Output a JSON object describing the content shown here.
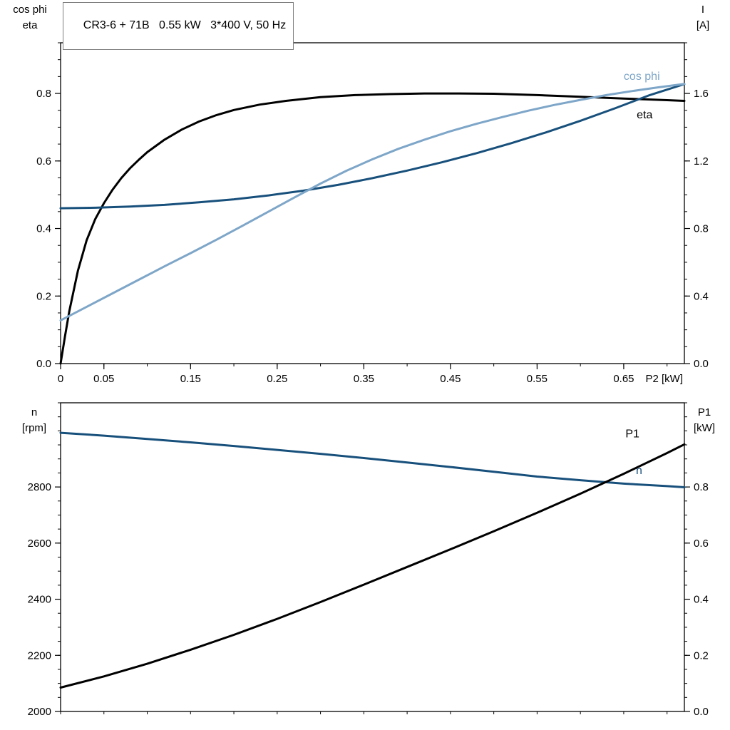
{
  "page": {
    "background": "#ffffff",
    "frame_color": "#000000"
  },
  "chart_data": [
    {
      "type": "line",
      "title": "CR3-6 + 71B   0.55 kW   3*400 V, 50 Hz",
      "x_axis": {
        "label": "P2 [kW]",
        "range": [
          0,
          0.72
        ],
        "tick_step": 0.05,
        "labeled_ticks": [
          {
            "v": 0,
            "t": "0"
          },
          {
            "v": 0.05,
            "t": "0.05"
          },
          {
            "v": 0.15,
            "t": "0.15"
          },
          {
            "v": 0.25,
            "t": "0.25"
          },
          {
            "v": 0.35,
            "t": "0.35"
          },
          {
            "v": 0.45,
            "t": "0.45"
          },
          {
            "v": 0.55,
            "t": "0.55"
          },
          {
            "v": 0.65,
            "t": "0.65"
          }
        ]
      },
      "y_left": {
        "header": [
          "cos phi",
          "eta"
        ],
        "range": [
          0,
          0.95
        ],
        "tick_step": 0.05,
        "labeled_ticks": [
          {
            "v": 0,
            "t": "0.0"
          },
          {
            "v": 0.2,
            "t": "0.2"
          },
          {
            "v": 0.4,
            "t": "0.4"
          },
          {
            "v": 0.6,
            "t": "0.6"
          },
          {
            "v": 0.8,
            "t": "0.8"
          }
        ]
      },
      "y_right": {
        "header": [
          "I",
          "[A]"
        ],
        "range": [
          0,
          1.9
        ],
        "tick_step": 0.1,
        "labeled_ticks": [
          {
            "v": 0,
            "t": "0.0"
          },
          {
            "v": 0.4,
            "t": "0.4"
          },
          {
            "v": 0.8,
            "t": "0.8"
          },
          {
            "v": 1.2,
            "t": "1.2"
          },
          {
            "v": 1.6,
            "t": "1.6"
          }
        ]
      },
      "series": [
        {
          "name": "eta",
          "axis": "left",
          "color": "#000000",
          "label": "eta",
          "label_at": [
            0.665,
            0.737
          ],
          "points": [
            [
              0,
              0
            ],
            [
              0.005,
              0.08
            ],
            [
              0.01,
              0.155
            ],
            [
              0.02,
              0.275
            ],
            [
              0.03,
              0.365
            ],
            [
              0.04,
              0.428
            ],
            [
              0.05,
              0.475
            ],
            [
              0.06,
              0.515
            ],
            [
              0.07,
              0.549
            ],
            [
              0.08,
              0.578
            ],
            [
              0.09,
              0.603
            ],
            [
              0.1,
              0.626
            ],
            [
              0.12,
              0.663
            ],
            [
              0.14,
              0.693
            ],
            [
              0.16,
              0.717
            ],
            [
              0.18,
              0.736
            ],
            [
              0.2,
              0.751
            ],
            [
              0.23,
              0.767
            ],
            [
              0.26,
              0.778
            ],
            [
              0.3,
              0.789
            ],
            [
              0.34,
              0.795
            ],
            [
              0.38,
              0.798
            ],
            [
              0.42,
              0.8
            ],
            [
              0.46,
              0.8
            ],
            [
              0.5,
              0.799
            ],
            [
              0.55,
              0.795
            ],
            [
              0.6,
              0.79
            ],
            [
              0.65,
              0.785
            ],
            [
              0.7,
              0.78
            ],
            [
              0.72,
              0.778
            ]
          ]
        },
        {
          "name": "I",
          "axis": "right",
          "color": "#18507c",
          "label": "",
          "points": [
            [
              0,
              0.92
            ],
            [
              0.04,
              0.923
            ],
            [
              0.08,
              0.93
            ],
            [
              0.12,
              0.94
            ],
            [
              0.16,
              0.955
            ],
            [
              0.2,
              0.973
            ],
            [
              0.24,
              0.996
            ],
            [
              0.28,
              1.024
            ],
            [
              0.32,
              1.058
            ],
            [
              0.36,
              1.098
            ],
            [
              0.4,
              1.143
            ],
            [
              0.44,
              1.192
            ],
            [
              0.48,
              1.246
            ],
            [
              0.52,
              1.305
            ],
            [
              0.56,
              1.369
            ],
            [
              0.6,
              1.438
            ],
            [
              0.64,
              1.512
            ],
            [
              0.68,
              1.59
            ],
            [
              0.72,
              1.655
            ]
          ]
        },
        {
          "name": "cos-phi",
          "axis": "left",
          "color": "#7ea6c8",
          "label": "cos phi",
          "label_at": [
            0.65,
            0.851
          ],
          "points": [
            [
              0,
              0.128
            ],
            [
              0.03,
              0.168
            ],
            [
              0.06,
              0.208
            ],
            [
              0.09,
              0.248
            ],
            [
              0.12,
              0.288
            ],
            [
              0.15,
              0.327
            ],
            [
              0.18,
              0.367
            ],
            [
              0.21,
              0.408
            ],
            [
              0.24,
              0.45
            ],
            [
              0.27,
              0.492
            ],
            [
              0.3,
              0.533
            ],
            [
              0.33,
              0.571
            ],
            [
              0.36,
              0.605
            ],
            [
              0.39,
              0.636
            ],
            [
              0.42,
              0.663
            ],
            [
              0.45,
              0.688
            ],
            [
              0.48,
              0.71
            ],
            [
              0.51,
              0.73
            ],
            [
              0.54,
              0.749
            ],
            [
              0.57,
              0.766
            ],
            [
              0.6,
              0.781
            ],
            [
              0.63,
              0.795
            ],
            [
              0.66,
              0.807
            ],
            [
              0.69,
              0.818
            ],
            [
              0.72,
              0.828
            ]
          ]
        }
      ]
    },
    {
      "type": "line",
      "title": "",
      "x_axis": {
        "label": "",
        "range": [
          0,
          0.72
        ],
        "tick_step": 0.05,
        "labeled_ticks": []
      },
      "y_left": {
        "header": [
          "n",
          "[rpm]"
        ],
        "range": [
          2000,
          3100
        ],
        "tick_step": 50,
        "labeled_ticks": [
          {
            "v": 2000,
            "t": "2000"
          },
          {
            "v": 2200,
            "t": "2200"
          },
          {
            "v": 2400,
            "t": "2400"
          },
          {
            "v": 2600,
            "t": "2600"
          },
          {
            "v": 2800,
            "t": "2800"
          }
        ]
      },
      "y_right": {
        "header": [
          "P1",
          "[kW]"
        ],
        "range": [
          0,
          1.1
        ],
        "tick_step": 0.05,
        "labeled_ticks": [
          {
            "v": 0,
            "t": "0.0"
          },
          {
            "v": 0.2,
            "t": "0.2"
          },
          {
            "v": 0.4,
            "t": "0.4"
          },
          {
            "v": 0.6,
            "t": "0.6"
          },
          {
            "v": 0.8,
            "t": "0.8"
          }
        ]
      },
      "series": [
        {
          "name": "n",
          "axis": "left",
          "color": "#18507c",
          "label": "n",
          "label_at": [
            0.664,
            2859
          ],
          "points": [
            [
              0,
              2993
            ],
            [
              0.05,
              2983
            ],
            [
              0.1,
              2971
            ],
            [
              0.15,
              2959
            ],
            [
              0.2,
              2946
            ],
            [
              0.25,
              2932
            ],
            [
              0.3,
              2918
            ],
            [
              0.35,
              2903
            ],
            [
              0.4,
              2887
            ],
            [
              0.45,
              2871
            ],
            [
              0.5,
              2854
            ],
            [
              0.55,
              2837
            ],
            [
              0.6,
              2824
            ],
            [
              0.65,
              2812
            ],
            [
              0.7,
              2803
            ],
            [
              0.72,
              2799
            ]
          ]
        },
        {
          "name": "P1",
          "axis": "right",
          "color": "#000000",
          "label": "P1",
          "label_at": [
            0.652,
            0.99
          ],
          "points": [
            [
              0,
              0.085
            ],
            [
              0.05,
              0.125
            ],
            [
              0.1,
              0.17
            ],
            [
              0.15,
              0.22
            ],
            [
              0.2,
              0.273
            ],
            [
              0.25,
              0.33
            ],
            [
              0.3,
              0.39
            ],
            [
              0.35,
              0.452
            ],
            [
              0.4,
              0.515
            ],
            [
              0.45,
              0.578
            ],
            [
              0.5,
              0.642
            ],
            [
              0.55,
              0.708
            ],
            [
              0.6,
              0.776
            ],
            [
              0.65,
              0.847
            ],
            [
              0.7,
              0.921
            ],
            [
              0.72,
              0.952
            ]
          ]
        }
      ]
    }
  ]
}
